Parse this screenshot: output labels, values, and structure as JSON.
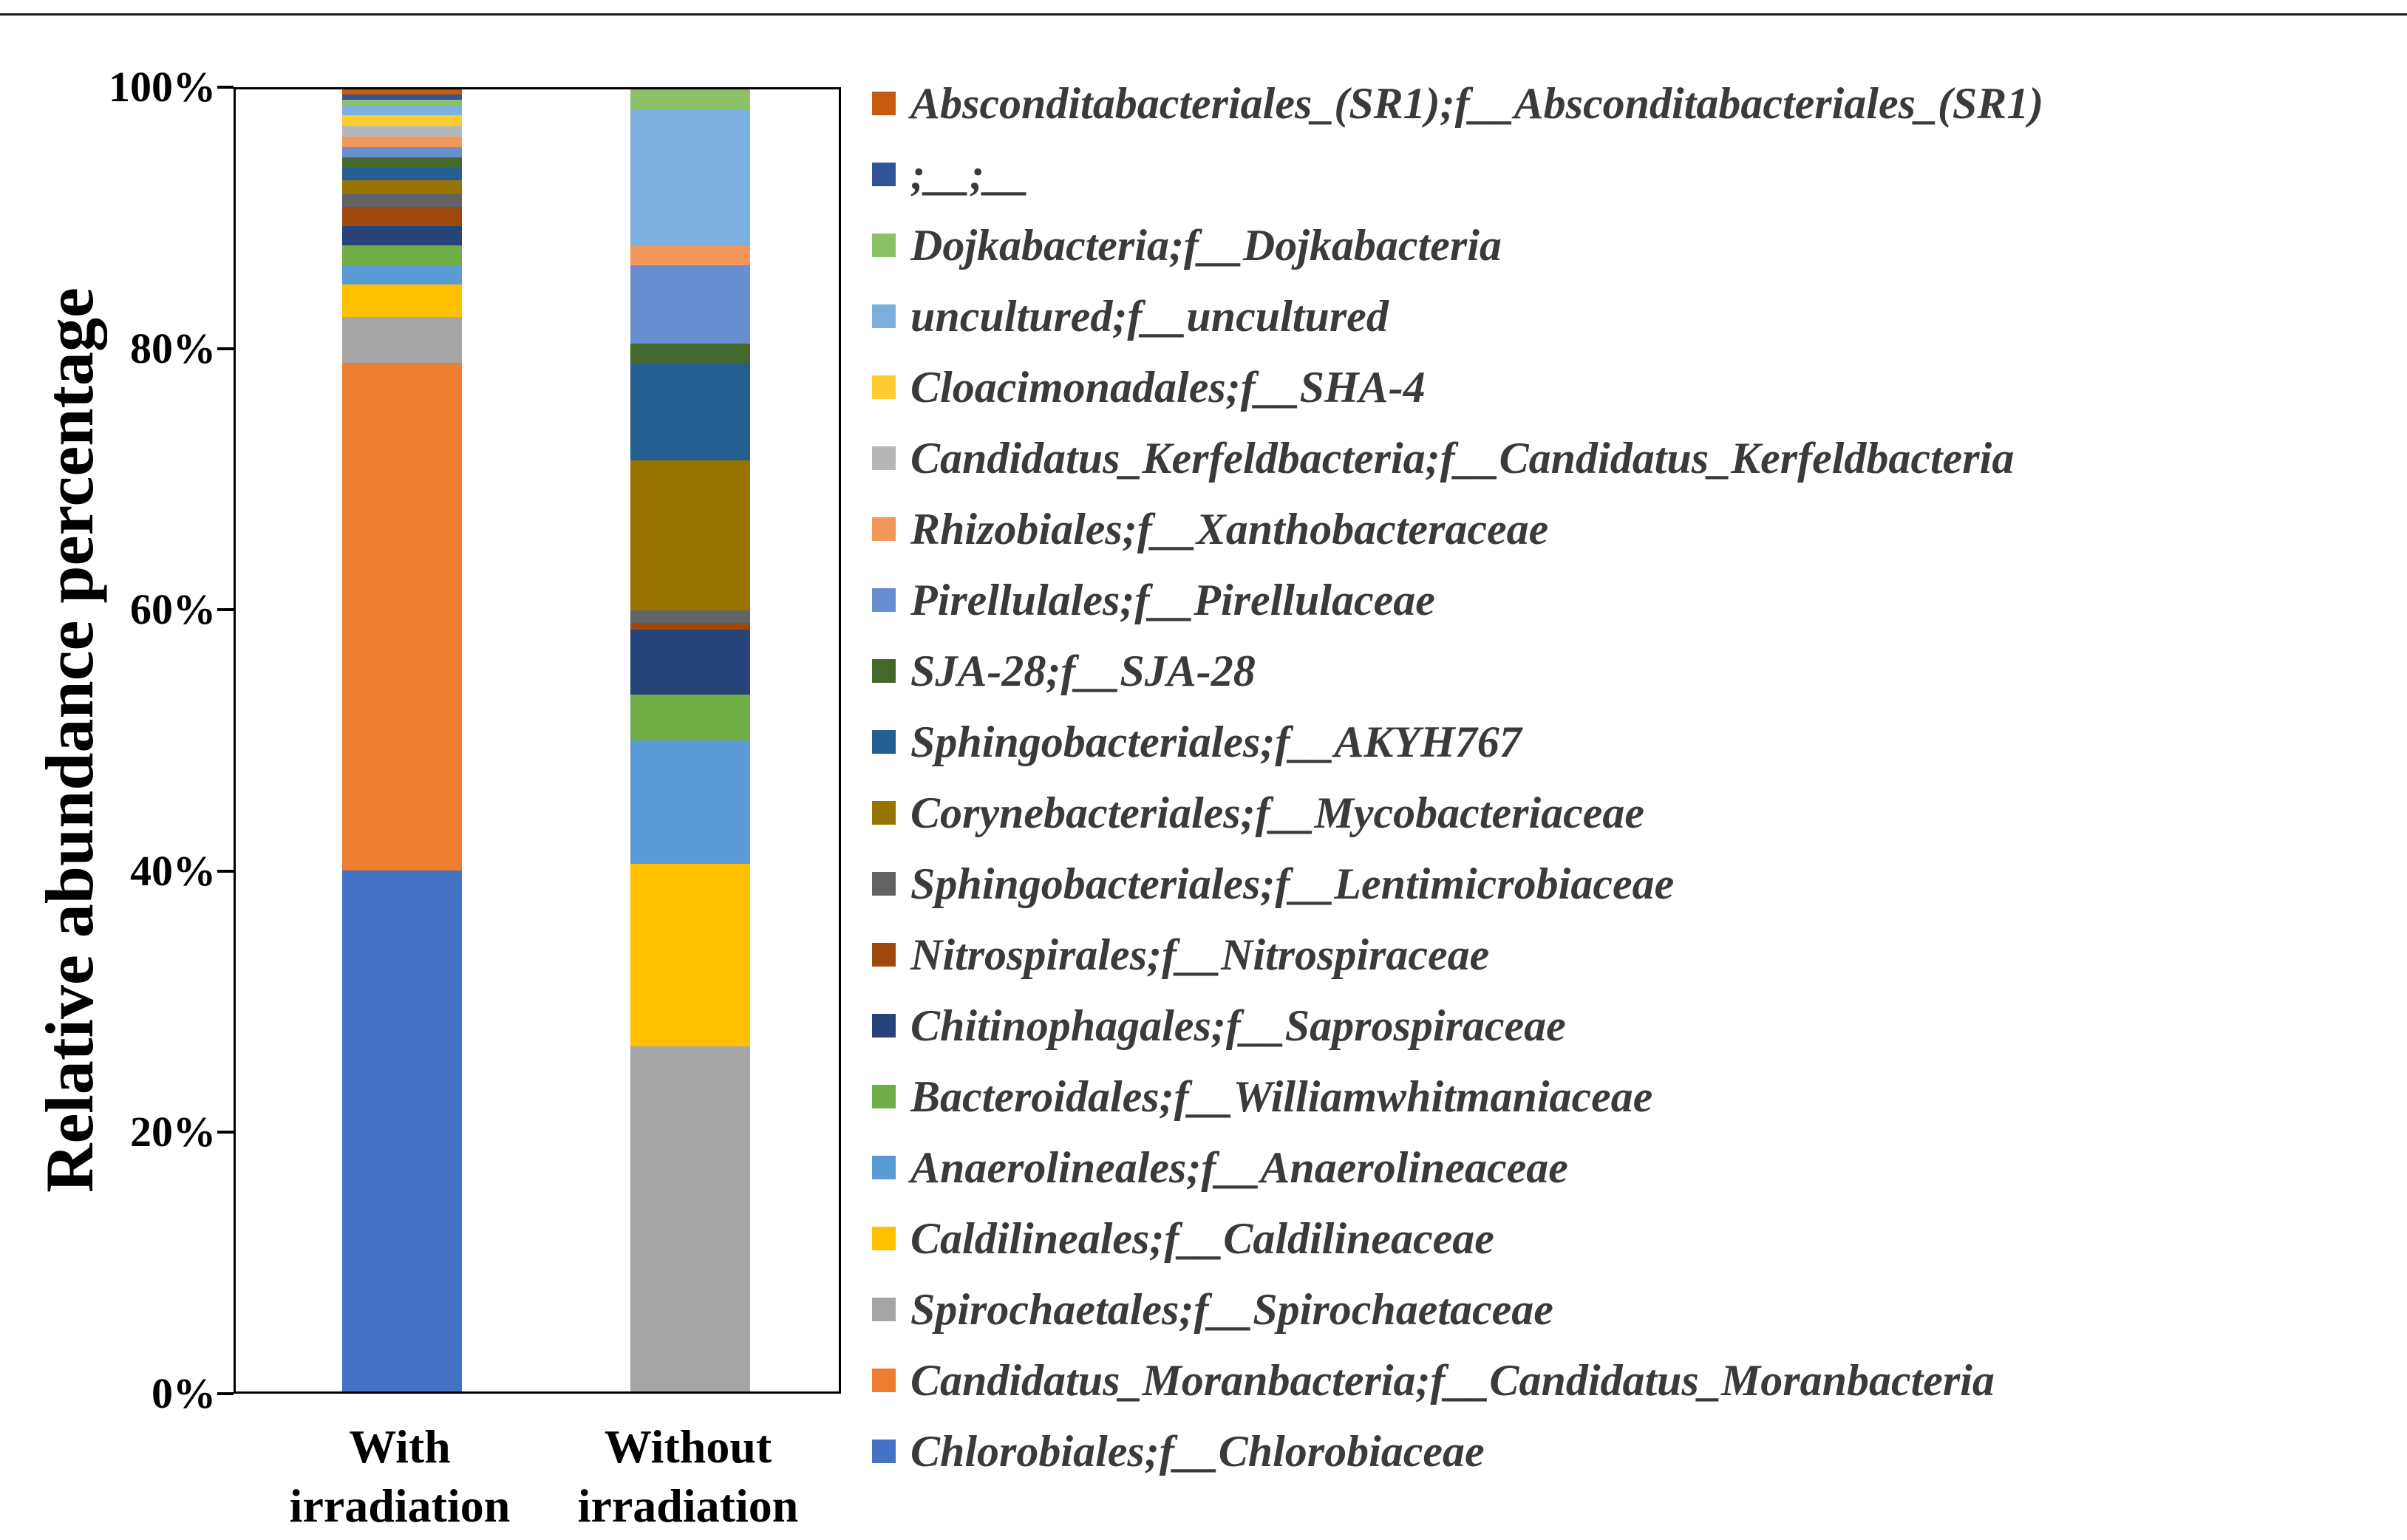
{
  "chart_data": {
    "type": "bar",
    "subtype": "stacked-percentage-bar",
    "title": "",
    "xlabel": "",
    "ylabel": "Relative abundance percentage",
    "ylim": [
      0,
      100
    ],
    "grid": false,
    "legend_position": "right",
    "yticks": [
      "0%",
      "20%",
      "40%",
      "60%",
      "80%",
      "100%"
    ],
    "ytick_values": [
      0,
      20,
      40,
      60,
      80,
      100
    ],
    "categories": [
      "With irradiation",
      "Without irradiation"
    ],
    "category_lines": [
      [
        "With",
        "irradiation"
      ],
      [
        "Without",
        "irradiation"
      ]
    ],
    "stacking_note": "series listed bottom-to-top of the stack; legend shown top-to-bottom is the reverse order; values are percent for [With irradiation, Without irradiation]",
    "series": [
      {
        "name": "Chlorobiales;f__Chlorobiaceae",
        "color": "#4472C4",
        "values": [
          40,
          0
        ]
      },
      {
        "name": "Candidatus_Moranbacteria;f__Candidatus_Moranbacteria",
        "color": "#ED7D31",
        "values": [
          39,
          0
        ]
      },
      {
        "name": "Spirochaetales;f__Spirochaetaceae",
        "color": "#A5A5A5",
        "values": [
          3.5,
          26.5
        ]
      },
      {
        "name": "Caldilineales;f__Caldilineaceae",
        "color": "#FFC000",
        "values": [
          2.5,
          14
        ]
      },
      {
        "name": "Anaerolineales;f__Anaerolineaceae",
        "color": "#5B9BD5",
        "values": [
          1.5,
          9.5
        ]
      },
      {
        "name": "Bacteroidales;f__Williamwhitmaniaceae",
        "color": "#70AD47",
        "values": [
          1.5,
          3.5
        ]
      },
      {
        "name": "Chitinophagales;f__Saprospiraceae",
        "color": "#264478",
        "values": [
          1.5,
          5
        ]
      },
      {
        "name": "Nitrospirales;f__Nitrospiraceae",
        "color": "#9E480E",
        "values": [
          1.5,
          0.5
        ]
      },
      {
        "name": "Sphingobacteriales;f__Lentimicrobiaceae",
        "color": "#636363",
        "values": [
          1,
          1
        ]
      },
      {
        "name": "Corynebacteriales;f__Mycobacteriaceae",
        "color": "#997300",
        "values": [
          1,
          11.5
        ]
      },
      {
        "name": "Sphingobacteriales;f__AKYH767",
        "color": "#255E91",
        "values": [
          1,
          7.5
        ]
      },
      {
        "name": "SJA-28;f__SJA-28",
        "color": "#43682B",
        "values": [
          0.8,
          1.5
        ]
      },
      {
        "name": "Pirellulales;f__Pirellulaceae",
        "color": "#698ED0",
        "values": [
          0.8,
          6
        ]
      },
      {
        "name": "Rhizobiales;f__Xanthobacteraceae",
        "color": "#F1975A",
        "values": [
          0.8,
          1.5
        ]
      },
      {
        "name": "Candidatus_Kerfeldbacteria;f__Candidatus_Kerfeldbacteria",
        "color": "#B7B7B7",
        "values": [
          0.8,
          0
        ]
      },
      {
        "name": "Cloacimonadales;f__SHA-4",
        "color": "#FFCD33",
        "values": [
          0.8,
          0
        ]
      },
      {
        "name": "uncultured;f__uncultured",
        "color": "#7CAFDD",
        "values": [
          0.8,
          10.5
        ]
      },
      {
        "name": "Dojkabacteria;f__Dojkabacteria",
        "color": "#8CC168",
        "values": [
          0.4,
          1.5
        ]
      },
      {
        "name": ";__;__",
        "color": "#2F5597",
        "values": [
          0.4,
          0
        ]
      },
      {
        "name": "Absconditabacteriales_(SR1);f__Absconditabacteriales_(SR1)",
        "color": "#C55A11",
        "values": [
          0.4,
          0
        ]
      }
    ]
  }
}
